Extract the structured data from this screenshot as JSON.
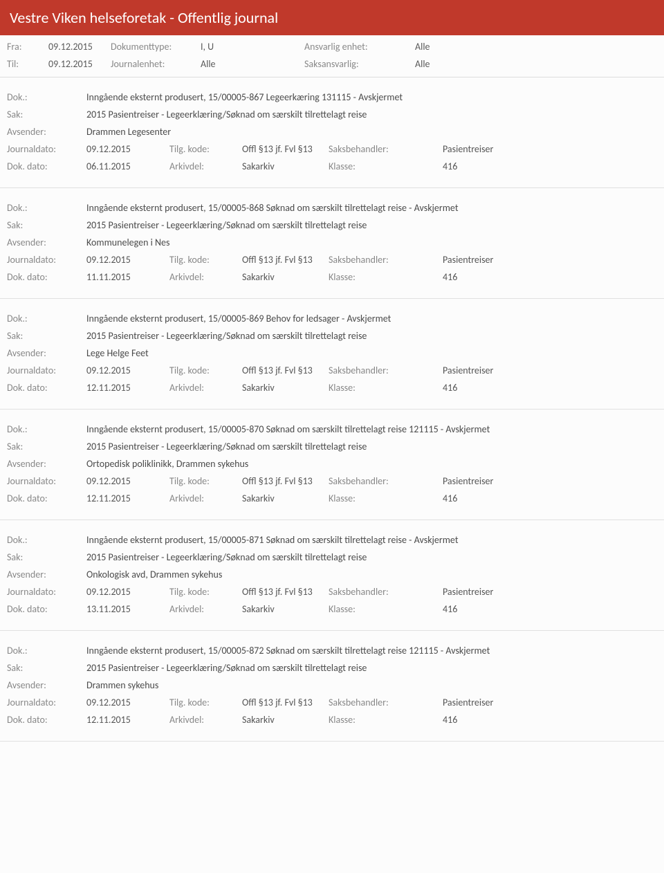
{
  "header": {
    "title": "Vestre Viken helseforetak - Offentlig journal"
  },
  "filters": {
    "row1": {
      "fra_label": "Fra:",
      "fra_value": "09.12.2015",
      "doktype_label": "Dokumenttype:",
      "doktype_value": "I, U",
      "enhet_label": "Ansvarlig enhet:",
      "enhet_value": "Alle"
    },
    "row2": {
      "til_label": "Til:",
      "til_value": "09.12.2015",
      "journalenhet_label": "Journalenhet:",
      "journalenhet_value": "Alle",
      "saksansvarlig_label": "Saksansvarlig:",
      "saksansvarlig_value": "Alle"
    }
  },
  "labels": {
    "dok": "Dok.:",
    "sak": "Sak:",
    "avsender": "Avsender:",
    "journaldato": "Journaldato:",
    "dokdato": "Dok. dato:",
    "tilgkode": "Tilg. kode:",
    "arkivdel": "Arkivdel:",
    "saksbehandler": "Saksbehandler:",
    "klasse": "Klasse:"
  },
  "entries": [
    {
      "dok": "Inngående eksternt produsert, 15/00005-867 Legeerkæring 131115 - Avskjermet",
      "sak": "2015 Pasientreiser - Legeerklæring/Søknad om særskilt tilrettelagt reise",
      "avsender": "Drammen Legesenter",
      "journaldato": "09.12.2015",
      "tilgkode": "Offl §13 jf. Fvl §13",
      "saksbehandler": "Pasientreiser",
      "dokdato": "06.11.2015",
      "arkivdel": "Sakarkiv",
      "klasse": "416"
    },
    {
      "dok": "Inngående eksternt produsert, 15/00005-868 Søknad om særskilt tilrettelagt reise - Avskjermet",
      "sak": "2015 Pasientreiser - Legeerklæring/Søknad om særskilt tilrettelagt reise",
      "avsender": "Kommunelegen i Nes",
      "journaldato": "09.12.2015",
      "tilgkode": "Offl §13 jf. Fvl §13",
      "saksbehandler": "Pasientreiser",
      "dokdato": "11.11.2015",
      "arkivdel": "Sakarkiv",
      "klasse": "416"
    },
    {
      "dok": "Inngående eksternt produsert, 15/00005-869 Behov for ledsager - Avskjermet",
      "sak": "2015 Pasientreiser - Legeerklæring/Søknad om særskilt tilrettelagt reise",
      "avsender": "Lege Helge Feet",
      "journaldato": "09.12.2015",
      "tilgkode": "Offl §13 jf. Fvl §13",
      "saksbehandler": "Pasientreiser",
      "dokdato": "12.11.2015",
      "arkivdel": "Sakarkiv",
      "klasse": "416"
    },
    {
      "dok": "Inngående eksternt produsert, 15/00005-870 Søknad om særskilt tilrettelagt reise 121115 - Avskjermet",
      "sak": "2015 Pasientreiser - Legeerklæring/Søknad om særskilt tilrettelagt reise",
      "avsender": "Ortopedisk poliklinikk, Drammen sykehus",
      "journaldato": "09.12.2015",
      "tilgkode": "Offl §13 jf. Fvl §13",
      "saksbehandler": "Pasientreiser",
      "dokdato": "12.11.2015",
      "arkivdel": "Sakarkiv",
      "klasse": "416"
    },
    {
      "dok": "Inngående eksternt produsert, 15/00005-871 Søknad om særskilt tilrettelagt reise - Avskjermet",
      "sak": "2015 Pasientreiser - Legeerklæring/Søknad om særskilt tilrettelagt reise",
      "avsender": "Onkologisk avd, Drammen sykehus",
      "journaldato": "09.12.2015",
      "tilgkode": "Offl §13 jf. Fvl §13",
      "saksbehandler": "Pasientreiser",
      "dokdato": "13.11.2015",
      "arkivdel": "Sakarkiv",
      "klasse": "416"
    },
    {
      "dok": "Inngående eksternt produsert, 15/00005-872 Søknad om særskilt tilrettelagt reise 121115 - Avskjermet",
      "sak": "2015 Pasientreiser - Legeerklæring/Søknad om særskilt tilrettelagt reise",
      "avsender": "Drammen sykehus",
      "journaldato": "09.12.2015",
      "tilgkode": "Offl §13 jf. Fvl §13",
      "saksbehandler": "Pasientreiser",
      "dokdato": "12.11.2015",
      "arkivdel": "Sakarkiv",
      "klasse": "416"
    }
  ]
}
